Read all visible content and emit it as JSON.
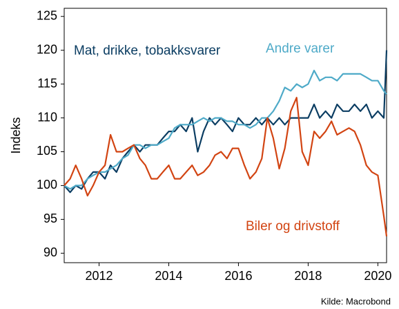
{
  "chart_data": {
    "type": "line",
    "y_label": "Indeks",
    "source": "Kilde: Macrobond",
    "x": [
      2011.0,
      2011.17,
      2011.33,
      2011.5,
      2011.67,
      2011.83,
      2012.0,
      2012.17,
      2012.33,
      2012.5,
      2012.67,
      2012.83,
      2013.0,
      2013.17,
      2013.33,
      2013.5,
      2013.67,
      2013.83,
      2014.0,
      2014.17,
      2014.33,
      2014.5,
      2014.67,
      2014.83,
      2015.0,
      2015.17,
      2015.33,
      2015.5,
      2015.67,
      2015.83,
      2016.0,
      2016.17,
      2016.33,
      2016.5,
      2016.67,
      2016.83,
      2017.0,
      2017.17,
      2017.33,
      2017.5,
      2017.67,
      2017.83,
      2018.0,
      2018.17,
      2018.33,
      2018.5,
      2018.67,
      2018.83,
      2019.0,
      2019.17,
      2019.33,
      2019.5,
      2019.67,
      2019.83,
      2020.0,
      2020.17,
      2020.25
    ],
    "series": [
      {
        "name": "Mat, drikke, tobakksvarer",
        "color": "#0b3d62",
        "values": [
          100,
          99,
          100,
          99.5,
          101,
          102,
          102,
          101,
          103,
          102,
          104,
          105,
          106,
          105,
          106,
          106,
          106,
          107,
          108,
          108,
          109,
          108,
          110,
          105,
          108,
          110,
          109,
          110,
          109,
          108,
          110,
          109,
          109,
          110,
          109,
          110,
          109,
          110,
          109,
          110,
          110,
          110,
          110,
          112,
          110,
          111,
          110,
          112,
          111,
          111,
          112,
          111,
          112,
          110,
          111,
          110,
          120
        ]
      },
      {
        "name": "Andre varer",
        "color": "#4eaac8",
        "values": [
          100,
          99.5,
          100,
          100,
          101,
          101.5,
          102,
          102,
          102.5,
          103,
          104,
          104.5,
          106,
          106,
          105.5,
          106,
          106,
          106.5,
          107,
          108.5,
          109,
          109,
          109,
          109.5,
          110,
          109.5,
          110,
          110,
          109.5,
          109.5,
          109,
          109,
          108.5,
          109,
          110,
          110,
          111,
          112.5,
          114.5,
          114,
          115,
          114.5,
          115,
          117,
          115.5,
          116,
          116,
          115.5,
          116.5,
          116.5,
          116.5,
          116.5,
          116,
          115.5,
          115.5,
          114,
          113.5
        ]
      },
      {
        "name": "Biler og drivstoff",
        "color": "#d24412",
        "values": [
          100,
          101,
          103,
          101,
          98.5,
          100,
          102,
          103,
          107.5,
          105,
          105,
          105.5,
          106,
          104,
          103,
          101,
          101,
          102,
          103,
          101,
          101,
          102,
          103,
          101.5,
          102,
          103,
          104.5,
          105,
          104,
          105.5,
          105.5,
          103,
          101,
          102,
          104,
          110,
          107,
          102.5,
          105.5,
          111,
          113,
          105,
          103,
          108,
          107,
          108,
          109.5,
          107.5,
          108,
          108.5,
          108,
          106,
          103,
          102,
          101.5,
          95.5,
          92.5
        ]
      }
    ],
    "xlim": [
      2011,
      2020.25
    ],
    "ylim": [
      88.6,
      126.2
    ],
    "xticks": [
      2012,
      2014,
      2016,
      2018,
      2020
    ],
    "yticks": [
      90,
      95,
      100,
      105,
      110,
      115,
      120,
      125
    ]
  }
}
